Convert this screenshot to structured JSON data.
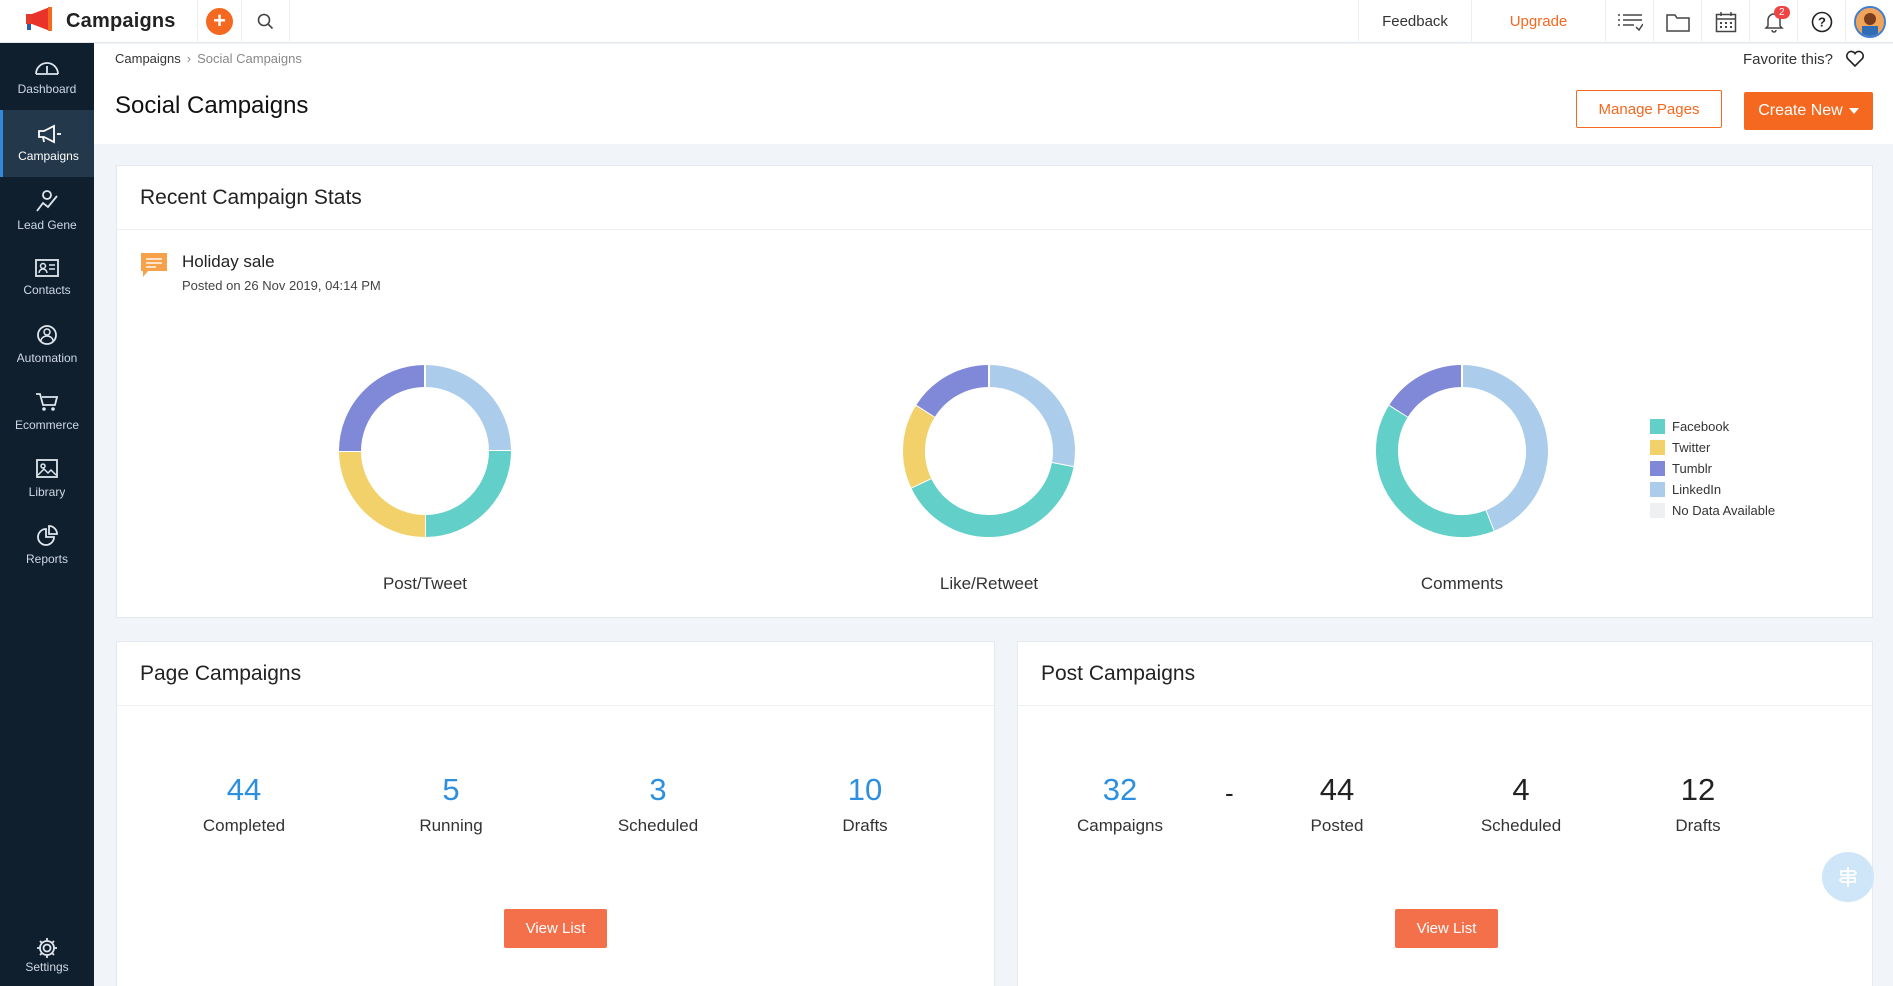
{
  "app": {
    "title": "Campaigns"
  },
  "topbar": {
    "feedback_label": "Feedback",
    "upgrade_label": "Upgrade",
    "notification_count": "2"
  },
  "sidebar": {
    "items": [
      {
        "label": "Dashboard",
        "icon": "dashboard-icon"
      },
      {
        "label": "Campaigns",
        "icon": "megaphone-icon",
        "active": true
      },
      {
        "label": "Lead Gene",
        "icon": "lead-gen-icon"
      },
      {
        "label": "Contacts",
        "icon": "contacts-icon"
      },
      {
        "label": "Automation",
        "icon": "automation-icon"
      },
      {
        "label": "Ecommerce",
        "icon": "cart-icon"
      },
      {
        "label": "Library",
        "icon": "image-icon"
      },
      {
        "label": "Reports",
        "icon": "pie-chart-icon"
      }
    ],
    "settings_label": "Settings"
  },
  "breadcrumb": {
    "root": "Campaigns",
    "sep": "›",
    "current": "Social Campaigns"
  },
  "header": {
    "title": "Social Campaigns",
    "favorite_label": "Favorite this?",
    "manage_pages_label": "Manage Pages",
    "create_new_label": "Create New"
  },
  "stats": {
    "title": "Recent Campaign Stats",
    "post": {
      "name": "Holiday sale",
      "date": "Posted on 26 Nov 2019, 04:14 PM"
    },
    "legend": [
      {
        "label": "Facebook",
        "color": "#62cfc8"
      },
      {
        "label": "Twitter",
        "color": "#f2d16b"
      },
      {
        "label": "Tumblr",
        "color": "#8088d8"
      },
      {
        "label": "LinkedIn",
        "color": "#abcdeb"
      },
      {
        "label": "No Data Available",
        "color": "#eef0f2"
      }
    ]
  },
  "chart_data": [
    {
      "type": "pie",
      "title": "Post/Tweet",
      "categories": [
        "Facebook",
        "Twitter",
        "Tumblr",
        "LinkedIn"
      ],
      "values": [
        25,
        25,
        25,
        25
      ]
    },
    {
      "type": "pie",
      "title": "Like/Retweet",
      "categories": [
        "Facebook",
        "Twitter",
        "Tumblr",
        "LinkedIn"
      ],
      "values": [
        40,
        16,
        16,
        28
      ]
    },
    {
      "type": "pie",
      "title": "Comments",
      "categories": [
        "Facebook",
        "Twitter",
        "Tumblr",
        "LinkedIn"
      ],
      "values": [
        40,
        0,
        16,
        44
      ]
    }
  ],
  "page_campaigns": {
    "title": "Page Campaigns",
    "metrics": [
      {
        "value": "44",
        "label": "Completed"
      },
      {
        "value": "5",
        "label": "Running"
      },
      {
        "value": "3",
        "label": "Scheduled"
      },
      {
        "value": "10",
        "label": "Drafts"
      }
    ],
    "view_list_label": "View List"
  },
  "post_campaigns": {
    "title": "Post Campaigns",
    "metrics": [
      {
        "value": "32",
        "label": "Campaigns"
      },
      {
        "value": "44",
        "label": "Posted"
      },
      {
        "value": "4",
        "label": "Scheduled"
      },
      {
        "value": "12",
        "label": "Drafts"
      }
    ],
    "dash": "-",
    "view_list_label": "View List"
  }
}
